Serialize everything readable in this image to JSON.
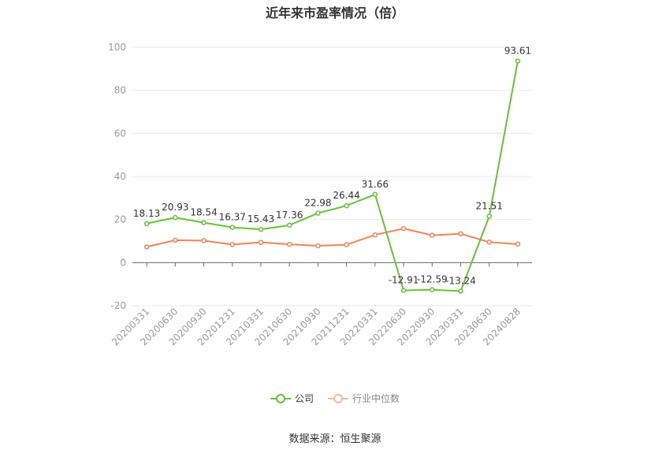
{
  "title": "近年来市盈率情况（倍）",
  "source": "数据来源：恒生聚源",
  "colors": {
    "company": "#67c23a",
    "industry": "#f0855a",
    "grid": "#e6e9f0",
    "axis": "#666666",
    "tick_text": "#999999",
    "label_text": "#333333"
  },
  "chart_data": {
    "type": "line",
    "title": "近年来市盈率情况（倍）",
    "xlabel": "",
    "ylabel": "",
    "ylim": [
      -20,
      100
    ],
    "yticks": [
      -20,
      0,
      20,
      40,
      60,
      80,
      100
    ],
    "grid": true,
    "legend_position": "bottom",
    "categories": [
      "20200331",
      "20200630",
      "20200930",
      "20201231",
      "20210331",
      "20210630",
      "20210930",
      "20211231",
      "20220331",
      "20220630",
      "20220930",
      "20230331",
      "20230630",
      "20240828"
    ],
    "series": [
      {
        "name": "公司",
        "color": "#67c23a",
        "values": [
          18.13,
          20.93,
          18.54,
          16.37,
          15.43,
          17.36,
          22.98,
          26.44,
          31.66,
          -12.91,
          -12.59,
          -13.24,
          21.51,
          93.61
        ],
        "labels": [
          "18.13",
          "20.93",
          "18.54",
          "16.37",
          "15.43",
          "17.36",
          "22.98",
          "26.44",
          "31.66",
          "-12.91",
          "-12.59",
          "-13.24",
          "21.51",
          "93.61"
        ]
      },
      {
        "name": "行业中位数",
        "color": "#f0855a",
        "values": [
          7.3,
          10.4,
          10.2,
          8.4,
          9.4,
          8.5,
          7.8,
          8.3,
          12.9,
          15.8,
          12.7,
          13.4,
          9.5,
          8.6
        ]
      }
    ]
  }
}
